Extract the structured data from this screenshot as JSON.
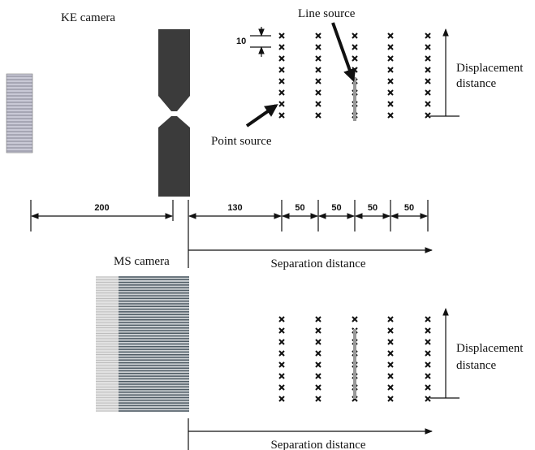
{
  "top": {
    "camera": "KE camera",
    "line_source": "Line source",
    "point_source": "Point source",
    "spacing": "10",
    "displacement": [
      "Displacement",
      "distance"
    ]
  },
  "dimensions": [
    "200",
    "130",
    "50",
    "50",
    "50",
    "50"
  ],
  "separation_top": "Separation distance",
  "bottom": {
    "camera": "MS camera",
    "displacement": [
      "Displacement",
      "distance"
    ],
    "separation": "Separation distance"
  }
}
